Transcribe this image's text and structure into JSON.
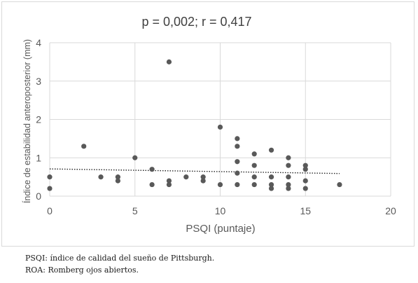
{
  "chart_data": {
    "type": "scatter",
    "title": "p = 0,002; r = 0,417",
    "xlabel": "PSQI (puntaje)",
    "ylabel": "Índice de estabilidad anteroposterior (mm)",
    "xlim": [
      0,
      20
    ],
    "ylim": [
      0,
      4
    ],
    "x_ticks": [
      "0",
      "5",
      "10",
      "15",
      "20"
    ],
    "y_ticks": [
      "0",
      "1",
      "2",
      "3",
      "4"
    ],
    "grid": true,
    "legend": "none",
    "marker_color": "#595959",
    "trendline": {
      "style": "dotted",
      "color": "#262626",
      "x": [
        0,
        17
      ],
      "y": [
        0.71,
        0.59
      ]
    },
    "points": [
      {
        "x": 0,
        "y": 0.5
      },
      {
        "x": 0,
        "y": 0.2
      },
      {
        "x": 2,
        "y": 1.3
      },
      {
        "x": 3,
        "y": 0.5
      },
      {
        "x": 4,
        "y": 0.5
      },
      {
        "x": 4,
        "y": 0.4
      },
      {
        "x": 5,
        "y": 1.0
      },
      {
        "x": 6,
        "y": 0.7
      },
      {
        "x": 6,
        "y": 0.3
      },
      {
        "x": 7,
        "y": 3.5
      },
      {
        "x": 7,
        "y": 0.4
      },
      {
        "x": 7,
        "y": 0.3
      },
      {
        "x": 8,
        "y": 0.5
      },
      {
        "x": 9,
        "y": 0.5
      },
      {
        "x": 9,
        "y": 0.4
      },
      {
        "x": 10,
        "y": 1.8
      },
      {
        "x": 10,
        "y": 0.3
      },
      {
        "x": 11,
        "y": 1.5
      },
      {
        "x": 11,
        "y": 1.3
      },
      {
        "x": 11,
        "y": 0.9
      },
      {
        "x": 11,
        "y": 0.6
      },
      {
        "x": 11,
        "y": 0.3
      },
      {
        "x": 12,
        "y": 1.1
      },
      {
        "x": 12,
        "y": 0.8
      },
      {
        "x": 12,
        "y": 0.5
      },
      {
        "x": 12,
        "y": 0.3
      },
      {
        "x": 13,
        "y": 1.2
      },
      {
        "x": 13,
        "y": 0.5
      },
      {
        "x": 13,
        "y": 0.3
      },
      {
        "x": 13,
        "y": 0.2
      },
      {
        "x": 14,
        "y": 1.0
      },
      {
        "x": 14,
        "y": 0.8
      },
      {
        "x": 14,
        "y": 0.5
      },
      {
        "x": 14,
        "y": 0.3
      },
      {
        "x": 14,
        "y": 0.2
      },
      {
        "x": 15,
        "y": 0.8
      },
      {
        "x": 15,
        "y": 0.7
      },
      {
        "x": 15,
        "y": 0.4
      },
      {
        "x": 15,
        "y": 0.2
      },
      {
        "x": 17,
        "y": 0.3
      }
    ]
  },
  "footnotes": {
    "psqi": "PSQI: índice de calidad del sueño de Pittsburgh.",
    "roa": "ROA: Romberg ojos abiertos."
  }
}
